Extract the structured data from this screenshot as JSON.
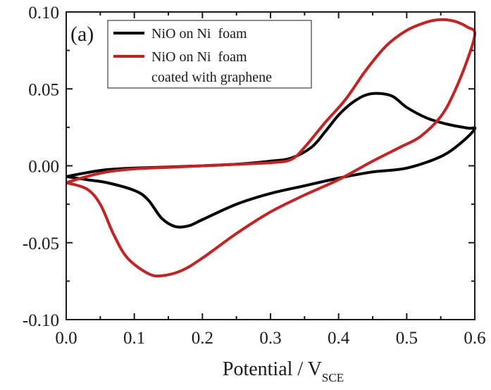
{
  "chart_data": {
    "type": "line",
    "panel_label": "(a)",
    "xlabel": "Potential / V",
    "xlabel_subscript": "SCE",
    "ylabel": "",
    "xlim": [
      0.0,
      0.6
    ],
    "ylim": [
      -0.1,
      0.1
    ],
    "x_ticks": [
      0.0,
      0.1,
      0.2,
      0.3,
      0.4,
      0.5,
      0.6
    ],
    "x_tick_labels": [
      "0.0",
      "0.1",
      "0.2",
      "0.3",
      "0.4",
      "0.5",
      "0.6"
    ],
    "y_ticks": [
      0.1,
      0.05,
      0.0,
      -0.05,
      -0.1
    ],
    "y_tick_labels": [
      "0.10",
      "0.05",
      "0.00",
      "-0.05",
      "-0.10"
    ],
    "grid": false,
    "legend_position": "top-left",
    "series": [
      {
        "name": "NiO on Ni  foam",
        "color": "#000000",
        "points": [
          [
            0.0,
            -0.007
          ],
          [
            0.03,
            -0.0045
          ],
          [
            0.06,
            -0.0025
          ],
          [
            0.1,
            -0.0015
          ],
          [
            0.15,
            -0.0008
          ],
          [
            0.2,
            0.0
          ],
          [
            0.25,
            0.001
          ],
          [
            0.3,
            0.003
          ],
          [
            0.33,
            0.005
          ],
          [
            0.36,
            0.012
          ],
          [
            0.38,
            0.022
          ],
          [
            0.4,
            0.033
          ],
          [
            0.42,
            0.041
          ],
          [
            0.44,
            0.046
          ],
          [
            0.46,
            0.047
          ],
          [
            0.48,
            0.045
          ],
          [
            0.5,
            0.038
          ],
          [
            0.53,
            0.031
          ],
          [
            0.56,
            0.027
          ],
          [
            0.59,
            0.0245
          ],
          [
            0.6,
            0.024
          ],
          [
            0.58,
            0.015
          ],
          [
            0.55,
            0.006
          ],
          [
            0.5,
            -0.0015
          ],
          [
            0.45,
            -0.004
          ],
          [
            0.4,
            -0.008
          ],
          [
            0.35,
            -0.013
          ],
          [
            0.3,
            -0.018
          ],
          [
            0.25,
            -0.025
          ],
          [
            0.2,
            -0.035
          ],
          [
            0.18,
            -0.039
          ],
          [
            0.16,
            -0.0395
          ],
          [
            0.14,
            -0.034
          ],
          [
            0.12,
            -0.022
          ],
          [
            0.1,
            -0.016
          ],
          [
            0.06,
            -0.011
          ],
          [
            0.03,
            -0.009
          ],
          [
            0.0,
            -0.007
          ]
        ]
      },
      {
        "name": "NiO on Ni  foam",
        "name_line2": "coated with graphene",
        "color": "#cc1f1f",
        "points": [
          [
            0.0,
            -0.011
          ],
          [
            0.03,
            -0.007
          ],
          [
            0.06,
            -0.004
          ],
          [
            0.1,
            -0.002
          ],
          [
            0.15,
            -0.001
          ],
          [
            0.2,
            0.0
          ],
          [
            0.25,
            0.001
          ],
          [
            0.3,
            0.002
          ],
          [
            0.33,
            0.004
          ],
          [
            0.35,
            0.012
          ],
          [
            0.38,
            0.028
          ],
          [
            0.41,
            0.043
          ],
          [
            0.44,
            0.062
          ],
          [
            0.47,
            0.078
          ],
          [
            0.5,
            0.088
          ],
          [
            0.53,
            0.0935
          ],
          [
            0.55,
            0.095
          ],
          [
            0.57,
            0.094
          ],
          [
            0.59,
            0.09
          ],
          [
            0.6,
            0.086
          ],
          [
            0.59,
            0.07
          ],
          [
            0.57,
            0.048
          ],
          [
            0.55,
            0.032
          ],
          [
            0.52,
            0.019
          ],
          [
            0.49,
            0.012
          ],
          [
            0.45,
            0.003
          ],
          [
            0.4,
            -0.009
          ],
          [
            0.35,
            -0.019
          ],
          [
            0.3,
            -0.03
          ],
          [
            0.25,
            -0.044
          ],
          [
            0.2,
            -0.06
          ],
          [
            0.17,
            -0.068
          ],
          [
            0.14,
            -0.0715
          ],
          [
            0.12,
            -0.07
          ],
          [
            0.09,
            -0.06
          ],
          [
            0.07,
            -0.045
          ],
          [
            0.05,
            -0.025
          ],
          [
            0.03,
            -0.015
          ],
          [
            0.0,
            -0.011
          ]
        ]
      }
    ]
  }
}
